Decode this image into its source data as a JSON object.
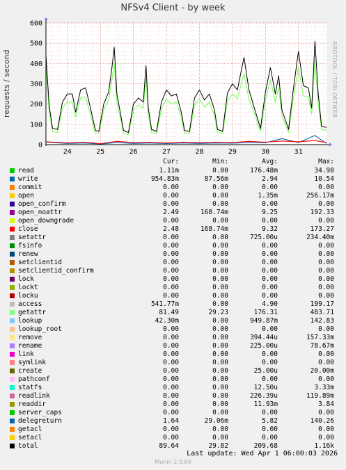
{
  "chart_data": {
    "type": "line",
    "title": "NFSv4 Client - by week",
    "ylabel": "requests / second",
    "ylim": [
      0,
      600
    ],
    "yticks": [
      0,
      100,
      200,
      300,
      400,
      500,
      600
    ],
    "xlim": [
      23.35,
      31.85
    ],
    "xticks": [
      24,
      25,
      26,
      27,
      28,
      29,
      30,
      31
    ],
    "xtick_labels": [
      "24",
      "25",
      "26",
      "27",
      "28",
      "29",
      "30",
      "31"
    ],
    "grid": true,
    "side_label": "RRDTOOL / TOBI OETIKER",
    "series": [
      {
        "name": "total",
        "color": "#000000",
        "x": [
          23.35,
          23.45,
          23.55,
          23.7,
          23.85,
          24.0,
          24.15,
          24.25,
          24.4,
          24.55,
          24.7,
          24.85,
          24.95,
          25.1,
          25.25,
          25.35,
          25.42,
          25.5,
          25.6,
          25.7,
          25.85,
          26.0,
          26.15,
          26.3,
          26.38,
          26.45,
          26.55,
          26.7,
          26.85,
          27.0,
          27.15,
          27.3,
          27.45,
          27.55,
          27.7,
          27.85,
          28.0,
          28.15,
          28.3,
          28.45,
          28.55,
          28.7,
          28.85,
          29.0,
          29.15,
          29.25,
          29.35,
          29.5,
          29.7,
          29.85,
          30.0,
          30.15,
          30.3,
          30.4,
          30.5,
          30.7,
          30.85,
          31.0,
          31.15,
          31.3,
          31.4,
          31.5,
          31.6,
          31.7,
          31.85
        ],
        "y": [
          440,
          190,
          80,
          75,
          210,
          250,
          250,
          160,
          270,
          280,
          180,
          70,
          65,
          200,
          260,
          380,
          480,
          250,
          160,
          70,
          60,
          200,
          230,
          210,
          390,
          180,
          75,
          65,
          210,
          270,
          240,
          250,
          160,
          70,
          65,
          230,
          270,
          220,
          250,
          175,
          75,
          65,
          255,
          300,
          270,
          350,
          430,
          270,
          160,
          80,
          260,
          380,
          250,
          340,
          170,
          75,
          280,
          460,
          290,
          280,
          180,
          510,
          250,
          90,
          85
        ]
      },
      {
        "name": "getattr",
        "color": "#7cff5a",
        "x": [
          23.35,
          23.45,
          23.55,
          23.7,
          23.85,
          24.0,
          24.15,
          24.25,
          24.4,
          24.55,
          24.7,
          24.85,
          24.95,
          25.1,
          25.25,
          25.35,
          25.42,
          25.5,
          25.6,
          25.7,
          25.85,
          26.0,
          26.15,
          26.3,
          26.38,
          26.45,
          26.55,
          26.7,
          26.85,
          27.0,
          27.15,
          27.3,
          27.45,
          27.55,
          27.7,
          27.85,
          28.0,
          28.15,
          28.3,
          28.45,
          28.55,
          28.7,
          28.85,
          29.0,
          29.15,
          29.25,
          29.35,
          29.5,
          29.7,
          29.85,
          30.0,
          30.15,
          30.3,
          30.4,
          30.5,
          30.7,
          30.85,
          31.0,
          31.15,
          31.3,
          31.4,
          31.5,
          31.6,
          31.7,
          31.85
        ],
        "y": [
          380,
          160,
          65,
          60,
          180,
          210,
          210,
          135,
          230,
          235,
          150,
          55,
          55,
          170,
          220,
          320,
          400,
          210,
          135,
          55,
          50,
          170,
          195,
          180,
          330,
          150,
          60,
          55,
          175,
          225,
          200,
          210,
          135,
          55,
          55,
          195,
          225,
          185,
          210,
          145,
          60,
          55,
          215,
          250,
          225,
          290,
          350,
          225,
          135,
          65,
          220,
          320,
          210,
          280,
          140,
          60,
          235,
          380,
          240,
          235,
          150,
          410,
          205,
          75,
          70
        ]
      },
      {
        "name": "close",
        "color": "#ff0000",
        "x": [
          23.35,
          24.0,
          24.5,
          25.0,
          25.5,
          26.0,
          26.5,
          27.0,
          27.5,
          28.0,
          28.5,
          29.0,
          29.5,
          30.0,
          30.5,
          31.0,
          31.5,
          31.85
        ],
        "y": [
          14,
          9,
          12,
          5,
          16,
          10,
          12,
          8,
          12,
          10,
          12,
          10,
          16,
          12,
          18,
          14,
          20,
          10
        ]
      },
      {
        "name": "delegreturn",
        "color": "#0066b3",
        "x": [
          23.35,
          24.0,
          24.5,
          25.0,
          25.5,
          26.0,
          26.5,
          27.0,
          27.5,
          28.0,
          28.5,
          29.0,
          29.5,
          30.0,
          30.5,
          31.0,
          31.5,
          31.85
        ],
        "y": [
          12,
          6,
          8,
          3,
          10,
          6,
          8,
          5,
          8,
          6,
          8,
          7,
          10,
          9,
          30,
          10,
          45,
          6
        ]
      }
    ],
    "legend": {
      "placement": "bottom",
      "columns": [
        "Cur:",
        "Min:",
        "Avg:",
        "Max:"
      ],
      "entries": [
        {
          "name": "read",
          "color": "#00cc00",
          "cur": "1.11m",
          "min": "0.00",
          "avg": "176.48m",
          "max": "34.98"
        },
        {
          "name": "write",
          "color": "#0066b3",
          "cur": "954.83m",
          "min": "87.56m",
          "avg": "2.94",
          "max": "10.54"
        },
        {
          "name": "commit",
          "color": "#ff8000",
          "cur": "0.00",
          "min": "0.00",
          "avg": "0.00",
          "max": "0.00"
        },
        {
          "name": "open",
          "color": "#ffcc00",
          "cur": "0.00",
          "min": "0.00",
          "avg": "1.35m",
          "max": "256.17m"
        },
        {
          "name": "open_confirm",
          "color": "#330099",
          "cur": "0.00",
          "min": "0.00",
          "avg": "0.00",
          "max": "0.00"
        },
        {
          "name": "open_noattr",
          "color": "#990099",
          "cur": "2.49",
          "min": "168.74m",
          "avg": "9.25",
          "max": "192.33"
        },
        {
          "name": "open_downgrade",
          "color": "#ccff00",
          "cur": "0.00",
          "min": "0.00",
          "avg": "0.00",
          "max": "0.00"
        },
        {
          "name": "close",
          "color": "#ff0000",
          "cur": "2.48",
          "min": "168.74m",
          "avg": "9.32",
          "max": "173.27"
        },
        {
          "name": "setattr",
          "color": "#808080",
          "cur": "0.00",
          "min": "0.00",
          "avg": "725.00u",
          "max": "234.40m"
        },
        {
          "name": "fsinfo",
          "color": "#008f00",
          "cur": "0.00",
          "min": "0.00",
          "avg": "0.00",
          "max": "0.00"
        },
        {
          "name": "renew",
          "color": "#00487d",
          "cur": "0.00",
          "min": "0.00",
          "avg": "0.00",
          "max": "0.00"
        },
        {
          "name": "setclientid",
          "color": "#b35a00",
          "cur": "0.00",
          "min": "0.00",
          "avg": "0.00",
          "max": "0.00"
        },
        {
          "name": "setclientid_confirm",
          "color": "#b38f00",
          "cur": "0.00",
          "min": "0.00",
          "avg": "0.00",
          "max": "0.00"
        },
        {
          "name": "lock",
          "color": "#6b006b",
          "cur": "0.00",
          "min": "0.00",
          "avg": "0.00",
          "max": "0.00"
        },
        {
          "name": "lockt",
          "color": "#8fb300",
          "cur": "0.00",
          "min": "0.00",
          "avg": "0.00",
          "max": "0.00"
        },
        {
          "name": "locku",
          "color": "#b30000",
          "cur": "0.00",
          "min": "0.00",
          "avg": "0.00",
          "max": "0.00"
        },
        {
          "name": "access",
          "color": "#bebebe",
          "cur": "541.77m",
          "min": "0.00",
          "avg": "4.90",
          "max": "199.17"
        },
        {
          "name": "getattr",
          "color": "#80ff80",
          "cur": "81.49",
          "min": "29.23",
          "avg": "176.31",
          "max": "483.71"
        },
        {
          "name": "lookup",
          "color": "#80c9ff",
          "cur": "42.30m",
          "min": "0.00",
          "avg": "949.87m",
          "max": "142.83"
        },
        {
          "name": "lookup_root",
          "color": "#ffc080",
          "cur": "0.00",
          "min": "0.00",
          "avg": "0.00",
          "max": "0.00"
        },
        {
          "name": "remove",
          "color": "#ffe680",
          "cur": "0.00",
          "min": "0.00",
          "avg": "394.44u",
          "max": "157.33m"
        },
        {
          "name": "rename",
          "color": "#aa80ff",
          "cur": "0.00",
          "min": "0.00",
          "avg": "225.00u",
          "max": "78.67m"
        },
        {
          "name": "link",
          "color": "#ee00cc",
          "cur": "0.00",
          "min": "0.00",
          "avg": "0.00",
          "max": "0.00"
        },
        {
          "name": "symlink",
          "color": "#ff8080",
          "cur": "0.00",
          "min": "0.00",
          "avg": "0.00",
          "max": "0.00"
        },
        {
          "name": "create",
          "color": "#666600",
          "cur": "0.00",
          "min": "0.00",
          "avg": "25.00u",
          "max": "20.00m"
        },
        {
          "name": "pathconf",
          "color": "#ffbfff",
          "cur": "0.00",
          "min": "0.00",
          "avg": "0.00",
          "max": "0.00"
        },
        {
          "name": "statfs",
          "color": "#00ffcc",
          "cur": "0.00",
          "min": "0.00",
          "avg": "12.50u",
          "max": "3.33m"
        },
        {
          "name": "readlink",
          "color": "#cc6699",
          "cur": "0.00",
          "min": "0.00",
          "avg": "226.39u",
          "max": "119.89m"
        },
        {
          "name": "readdir",
          "color": "#999900",
          "cur": "0.00",
          "min": "0.00",
          "avg": "11.93m",
          "max": "3.84"
        },
        {
          "name": "server_caps",
          "color": "#00cc00",
          "cur": "0.00",
          "min": "0.00",
          "avg": "0.00",
          "max": "0.00"
        },
        {
          "name": "delegreturn",
          "color": "#0066b3",
          "cur": "1.64",
          "min": "29.06m",
          "avg": "5.82",
          "max": "140.26"
        },
        {
          "name": "getacl",
          "color": "#ff8000",
          "cur": "0.00",
          "min": "0.00",
          "avg": "0.00",
          "max": "0.00"
        },
        {
          "name": "setacl",
          "color": "#ffcc00",
          "cur": "0.00",
          "min": "0.00",
          "avg": "0.00",
          "max": "0.00"
        },
        {
          "name": "total",
          "color": "#000000",
          "cur": "89.64",
          "min": "29.82",
          "avg": "209.68",
          "max": "1.16k"
        }
      ]
    }
  },
  "footer": {
    "last_update": "Last update: Wed Apr  1 06:00:03 2026",
    "munin_version": "Munin 2.0.69"
  }
}
